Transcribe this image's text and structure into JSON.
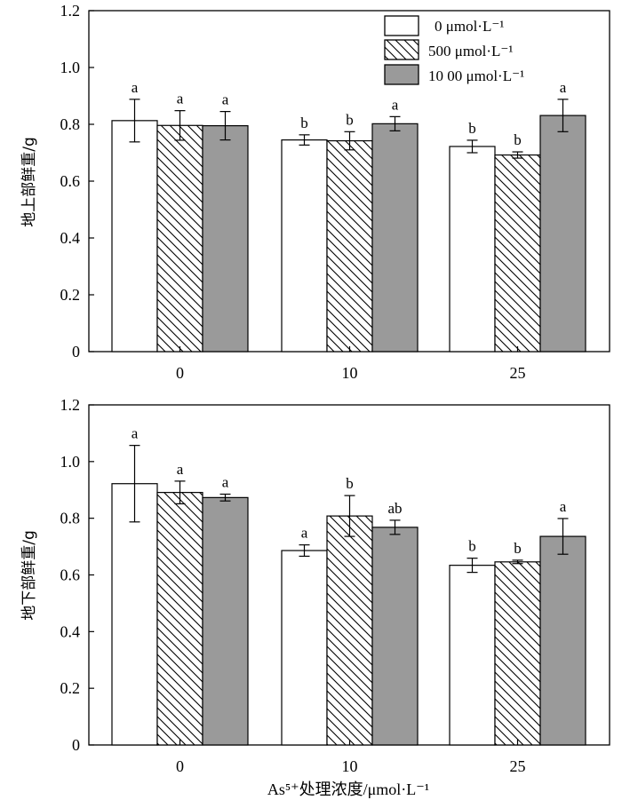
{
  "colors": {
    "low": "#ffffff",
    "mid": "hatch",
    "high": "#9a9a9a",
    "axis": "#000000"
  },
  "legend": {
    "items": [
      {
        "label": "0 μmol·L⁻¹",
        "style": "white"
      },
      {
        "label": "500 μmol·L⁻¹",
        "style": "hatch"
      },
      {
        "label": "10 00 μmol·L⁻¹",
        "style": "gray"
      }
    ]
  },
  "xlabel": "As⁵⁺处理浓度/μmol·L⁻¹",
  "chart_data": [
    {
      "type": "bar",
      "categories": [
        "0",
        "10",
        "25"
      ],
      "ylabel": "地上部鲜重/g",
      "ylim": [
        0,
        1.2
      ],
      "yticks": [
        "0",
        "0.2",
        "0.4",
        "0.6",
        "0.8",
        "1.0",
        "1.2"
      ],
      "legend_position": "top-right",
      "series": [
        {
          "name": "0 μmol·L⁻¹",
          "values": [
            0.813,
            0.745,
            0.722
          ],
          "errors": [
            0.075,
            0.018,
            0.022
          ],
          "labels": [
            "a",
            "b",
            "b"
          ]
        },
        {
          "name": "500 μmol·L⁻¹",
          "values": [
            0.796,
            0.742,
            0.692
          ],
          "errors": [
            0.052,
            0.032,
            0.011
          ],
          "labels": [
            "a",
            "b",
            "b"
          ]
        },
        {
          "name": "10 00 μmol·L⁻¹",
          "values": [
            0.795,
            0.802,
            0.831
          ],
          "errors": [
            0.05,
            0.025,
            0.057
          ],
          "labels": [
            "a",
            "a",
            "a"
          ]
        }
      ]
    },
    {
      "type": "bar",
      "categories": [
        "0",
        "10",
        "25"
      ],
      "ylabel": "地下部鲜重/g",
      "ylim": [
        0,
        1.2
      ],
      "yticks": [
        "0",
        "0.2",
        "0.4",
        "0.6",
        "0.8",
        "1.0",
        "1.2"
      ],
      "series": [
        {
          "name": "0 μmol·L⁻¹",
          "values": [
            0.922,
            0.686,
            0.634
          ],
          "errors": [
            0.135,
            0.02,
            0.025
          ],
          "labels": [
            "a",
            "a",
            "b"
          ]
        },
        {
          "name": "500 μmol·L⁻¹",
          "values": [
            0.891,
            0.808,
            0.646
          ],
          "errors": [
            0.04,
            0.072,
            0.006
          ],
          "labels": [
            "a",
            "b",
            "b"
          ]
        },
        {
          "name": "10 00 μmol·L⁻¹",
          "values": [
            0.873,
            0.768,
            0.736
          ],
          "errors": [
            0.012,
            0.025,
            0.063
          ],
          "labels": [
            "a",
            "ab",
            "a"
          ]
        }
      ]
    }
  ]
}
